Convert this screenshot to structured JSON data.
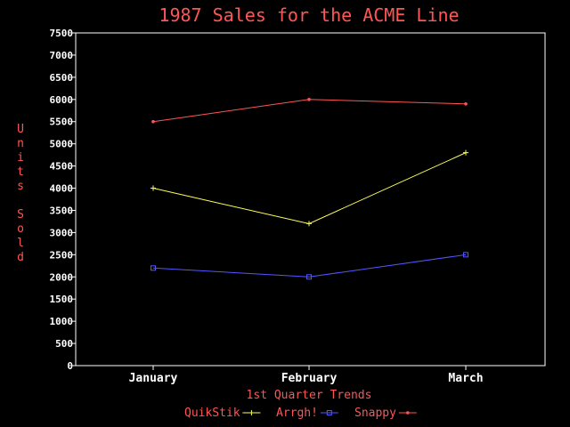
{
  "chart_data": {
    "type": "line",
    "title": "1987 Sales for the ACME Line",
    "xlabel": "1st Quarter Trends",
    "ylabel": "Units Sold",
    "categories": [
      "January",
      "February",
      "March"
    ],
    "ylim": [
      0,
      7500
    ],
    "yticks": [
      "0",
      "500",
      "1000",
      "1500",
      "2000",
      "2500",
      "3000",
      "3500",
      "4000",
      "4500",
      "5000",
      "5500",
      "6000",
      "6500",
      "7000",
      "7500"
    ],
    "grid": false,
    "legend_position": "bottom",
    "series": [
      {
        "name": "QuikStik",
        "values": [
          4000,
          3200,
          4800
        ],
        "color": "#ffff55",
        "marker": "plus"
      },
      {
        "name": "Arrgh!",
        "values": [
          2200,
          2000,
          2500
        ],
        "color": "#5555ff",
        "marker": "square"
      },
      {
        "name": "Snappy",
        "values": [
          5500,
          6000,
          5900
        ],
        "color": "#ff5555",
        "marker": "dot"
      }
    ],
    "colors": {
      "background": "#000000",
      "frame": "#ffffff",
      "tick_text": "#ffffff",
      "label_text": "#ff5555"
    }
  }
}
